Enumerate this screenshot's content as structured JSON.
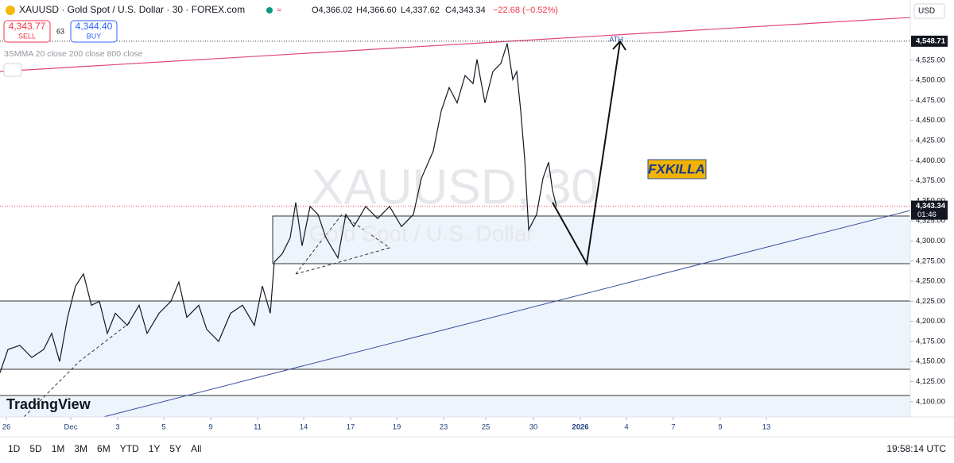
{
  "header": {
    "symbol": "XAUUSD · Gold Spot / U.S. Dollar · 30 · FOREX.com",
    "open": "O4,366.02",
    "high": "H4,366.60",
    "low": "L4,337.62",
    "close": "C4,343.34",
    "change": "−22.68 (−0.52%)",
    "sell_price": "4,343.77",
    "sell": "SELL",
    "spread": "63",
    "buy_price": "4,344.40",
    "buy": "BUY",
    "indicator": "3SMMA 20 close 200 close 800 close",
    "currency": "USD"
  },
  "chart_data": {
    "type": "line",
    "watermark": "XAUUSD, 30",
    "watermark_sub": "Gold Spot / U.S. Dollar",
    "color": "#131722",
    "x": [
      0,
      1,
      2.5,
      4,
      5.5,
      6.5,
      7.5,
      8.5,
      9.5,
      10.5,
      11.5,
      12.5,
      13.5,
      14.5,
      16,
      17.5,
      18.5,
      20,
      21.5,
      22.5,
      23.5,
      25,
      26,
      27.5,
      29,
      30.5,
      32,
      33,
      34,
      34.5,
      35.5,
      36.5,
      37.2,
      38,
      39,
      40,
      41,
      42.5,
      43.5,
      44.5,
      46,
      47.5,
      49,
      50.5,
      52,
      53,
      54.5,
      55.5,
      56.5,
      57.5,
      58.5,
      59.5,
      60,
      61,
      62,
      63,
      63.8,
      64.5,
      65,
      65.5,
      66,
      66.5,
      67.5,
      68.3,
      69,
      69.5,
      70
    ],
    "values": [
      4136,
      4165,
      4170,
      4155,
      4165,
      4185,
      4150,
      4205,
      4244,
      4259,
      4220,
      4225,
      4185,
      4210,
      4195,
      4220,
      4185,
      4210,
      4225,
      4249,
      4205,
      4220,
      4190,
      4175,
      4210,
      4220,
      4195,
      4244,
      4210,
      4274,
      4284,
      4304,
      4348,
      4294,
      4343,
      4333,
      4304,
      4279,
      4333,
      4318,
      4343,
      4328,
      4343,
      4318,
      4333,
      4378,
      4412,
      4462,
      4491,
      4472,
      4506,
      4496,
      4526,
      4472,
      4511,
      4521,
      4546,
      4501,
      4511,
      4462,
      4402,
      4314,
      4333,
      4378,
      4398,
      4363,
      4343
    ],
    "xlim": [
      0,
      114.5
    ],
    "ylim": [
      4081,
      4600
    ],
    "xticks": [
      {
        "value": 0.8,
        "label": "26"
      },
      {
        "value": 8.9,
        "label": "Dec"
      },
      {
        "value": 14.8,
        "label": "3"
      },
      {
        "value": 20.6,
        "label": "5"
      },
      {
        "value": 26.5,
        "label": "9"
      },
      {
        "value": 32.4,
        "label": "11"
      },
      {
        "value": 38.2,
        "label": "14"
      },
      {
        "value": 44.1,
        "label": "17"
      },
      {
        "value": 49.9,
        "label": "19"
      },
      {
        "value": 55.8,
        "label": "23"
      },
      {
        "value": 61.1,
        "label": "25"
      },
      {
        "value": 67.1,
        "label": "30"
      },
      {
        "value": 73,
        "label": "2026"
      },
      {
        "value": 78.8,
        "label": "4"
      },
      {
        "value": 84.7,
        "label": "7"
      },
      {
        "value": 90.6,
        "label": "9"
      },
      {
        "value": 96.4,
        "label": "13"
      }
    ],
    "yticks": [
      {
        "value": 4100,
        "label": "4,100.00"
      },
      {
        "value": 4125,
        "label": "4,125.00"
      },
      {
        "value": 4150,
        "label": "4,150.00"
      },
      {
        "value": 4175,
        "label": "4,175.00"
      },
      {
        "value": 4200,
        "label": "4,200.00"
      },
      {
        "value": 4225,
        "label": "4,225.00"
      },
      {
        "value": 4250,
        "label": "4,250.00"
      },
      {
        "value": 4275,
        "label": "4,275.00"
      },
      {
        "value": 4300,
        "label": "4,300.00"
      },
      {
        "value": 4325,
        "label": "4,325.00"
      },
      {
        "value": 4350,
        "label": "4,350.00"
      },
      {
        "value": 4375,
        "label": "4,375.00"
      },
      {
        "value": 4400,
        "label": "4,400.00"
      },
      {
        "value": 4425,
        "label": "4,425.00"
      },
      {
        "value": 4450,
        "label": "4,450.00"
      },
      {
        "value": 4475,
        "label": "4,475.00"
      },
      {
        "value": 4500,
        "label": "4,500.00"
      },
      {
        "value": 4525,
        "label": "4,525.00"
      }
    ],
    "price_markers": [
      {
        "value": 4548.71,
        "label": "4,548.71"
      },
      {
        "value": 4343.34,
        "label": "4,343.34"
      }
    ],
    "countdown": "01:46",
    "annotation_ath": "ATH",
    "annotation_brand": "FXKILLA"
  },
  "footer": {
    "logo": "TradingView",
    "ranges": [
      "1D",
      "5D",
      "1M",
      "3M",
      "6M",
      "YTD",
      "1Y",
      "5Y",
      "All"
    ],
    "clock": "19:58:14 UTC"
  }
}
